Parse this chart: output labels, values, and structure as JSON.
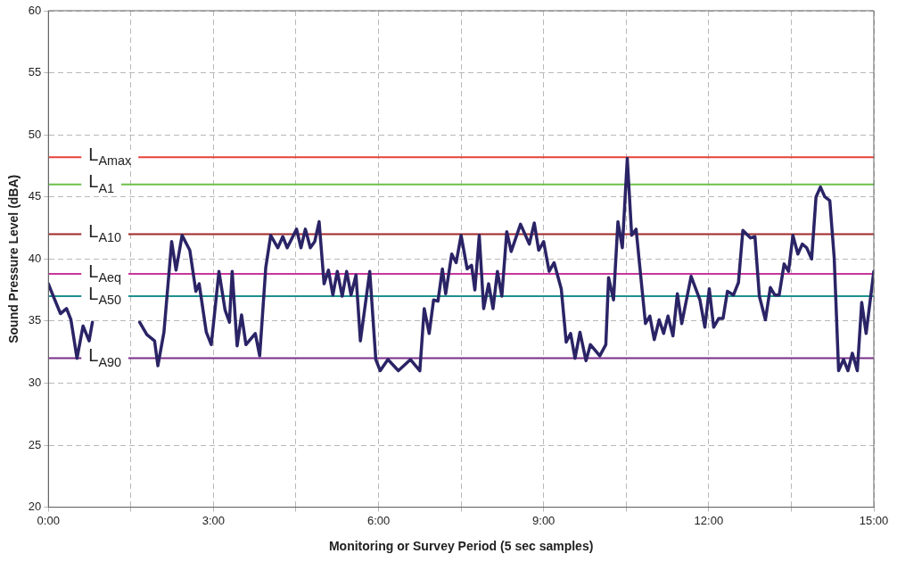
{
  "chart_data": {
    "type": "line",
    "xlabel": "Monitoring or Survey Period (5 sec samples)",
    "ylabel": "Sound Pressure Level (dBA)",
    "xlim": [
      0,
      15
    ],
    "xticks": [
      {
        "value": 0,
        "label": "0:00"
      },
      {
        "value": 1.5,
        "label": null
      },
      {
        "value": 3,
        "label": "3:00"
      },
      {
        "value": 4.5,
        "label": null
      },
      {
        "value": 6,
        "label": "6:00"
      },
      {
        "value": 7.5,
        "label": null
      },
      {
        "value": 9,
        "label": "9:00"
      },
      {
        "value": 10.5,
        "label": null
      },
      {
        "value": 12,
        "label": "12:00"
      },
      {
        "value": 13.5,
        "label": null
      },
      {
        "value": 15,
        "label": "15:00"
      }
    ],
    "ylim": [
      20,
      60
    ],
    "yticks": [
      20,
      25,
      30,
      35,
      40,
      45,
      50,
      55,
      60
    ],
    "grid": true,
    "legend": false,
    "marker": "none",
    "line_style": "solid",
    "series": [
      {
        "color": "#2a2466",
        "x": [
          0,
          0.08,
          0.22,
          0.33,
          0.41,
          0.52,
          0.63,
          0.74,
          0.8,
          0.9,
          1.66,
          1.79,
          1.93,
          1.99,
          2.1,
          2.24,
          2.32,
          2.43,
          2.57,
          2.68,
          2.74,
          2.87,
          2.96,
          3.1,
          3.21,
          3.29,
          3.34,
          3.43,
          3.51,
          3.59,
          3.76,
          3.84,
          3.95,
          4.04,
          4.17,
          4.26,
          4.34,
          4.51,
          4.59,
          4.67,
          4.76,
          4.84,
          4.92,
          5.01,
          5.09,
          5.17,
          5.25,
          5.34,
          5.42,
          5.5,
          5.59,
          5.67,
          5.84,
          5.95,
          6.03,
          6.17,
          6.36,
          6.58,
          6.75,
          6.83,
          6.92,
          7,
          7.08,
          7.16,
          7.22,
          7.33,
          7.41,
          7.5,
          7.61,
          7.69,
          7.75,
          7.83,
          7.91,
          8,
          8.08,
          8.16,
          8.24,
          8.33,
          8.41,
          8.58,
          8.74,
          8.83,
          8.91,
          9,
          9.1,
          9.19,
          9.32,
          9.41,
          9.49,
          9.57,
          9.66,
          9.77,
          9.85,
          10.02,
          10.13,
          10.18,
          10.27,
          10.35,
          10.43,
          10.52,
          10.6,
          10.68,
          10.85,
          10.93,
          11.01,
          11.1,
          11.18,
          11.26,
          11.35,
          11.43,
          11.51,
          11.68,
          11.84,
          11.93,
          12.01,
          12.09,
          12.18,
          12.26,
          12.34,
          12.45,
          12.54,
          12.62,
          12.76,
          12.84,
          12.92,
          13.03,
          13.12,
          13.2,
          13.28,
          13.37,
          13.45,
          13.53,
          13.62,
          13.7,
          13.78,
          13.87,
          13.95,
          14.03,
          14.11,
          14.2,
          14.28,
          14.36,
          14.45,
          14.53,
          14.61,
          14.7,
          14.78,
          14.86,
          15
        ],
        "values": [
          38,
          37.1,
          35.6,
          36,
          35.1,
          32,
          34.6,
          33.4,
          34.9,
          null,
          34.9,
          33.9,
          33.4,
          31.4,
          34.1,
          41.4,
          39.1,
          41.9,
          40.7,
          37.4,
          38,
          34.1,
          33.1,
          39,
          35.9,
          34.9,
          39,
          33,
          35.5,
          33.1,
          34,
          32.2,
          39.3,
          41.9,
          40.9,
          41.8,
          40.9,
          42.4,
          40.9,
          42.4,
          40.9,
          41.4,
          43,
          38,
          39.1,
          37.1,
          39,
          37,
          39,
          37.1,
          38.7,
          33.4,
          39,
          31.9,
          31,
          31.9,
          31,
          31.9,
          31,
          36,
          34,
          36.7,
          36.6,
          39.2,
          37.2,
          40.4,
          39.7,
          41.9,
          39.2,
          39.5,
          37.5,
          41.9,
          36,
          38,
          36,
          39,
          37,
          42.2,
          40.6,
          42.8,
          41.2,
          42.9,
          40.7,
          41.4,
          39,
          39.7,
          37.6,
          33.3,
          34,
          32,
          34.1,
          31.8,
          33.1,
          32.2,
          33.1,
          38.5,
          36.7,
          43,
          40.9,
          48.1,
          41.9,
          42.4,
          34.8,
          35.4,
          33.5,
          35.1,
          34,
          35.4,
          33.8,
          37.2,
          34.8,
          38.6,
          36.7,
          34.5,
          37.6,
          34.5,
          35.2,
          35.2,
          37.4,
          37.1,
          38.1,
          42.3,
          41.7,
          41.8,
          37,
          35.1,
          37.7,
          37.1,
          37.1,
          39.6,
          39,
          41.9,
          40.4,
          41.2,
          40.9,
          40,
          45,
          45.8,
          45,
          44.7,
          40.1,
          31,
          31.9,
          31,
          32.4,
          31,
          36.5,
          34,
          39
        ]
      }
    ],
    "ref_lines": [
      {
        "axis": "y",
        "value": 48.2,
        "label": "L$_{Amax}$",
        "color": "#e8413a"
      },
      {
        "axis": "y",
        "value": 46,
        "label": "L$_{A1}$",
        "color": "#6cc04a"
      },
      {
        "axis": "y",
        "value": 42,
        "label": "L$_{A10}$",
        "color": "#a0282a"
      },
      {
        "axis": "y",
        "value": 38.8,
        "label": "L$_{Aeq}$",
        "color": "#c8369a"
      },
      {
        "axis": "y",
        "value": 37,
        "label": "L$_{A50}$",
        "color": "#1f8f8f"
      },
      {
        "axis": "y",
        "value": 32,
        "label": "L$_{A90}$",
        "color": "#7a2e8a"
      }
    ]
  }
}
